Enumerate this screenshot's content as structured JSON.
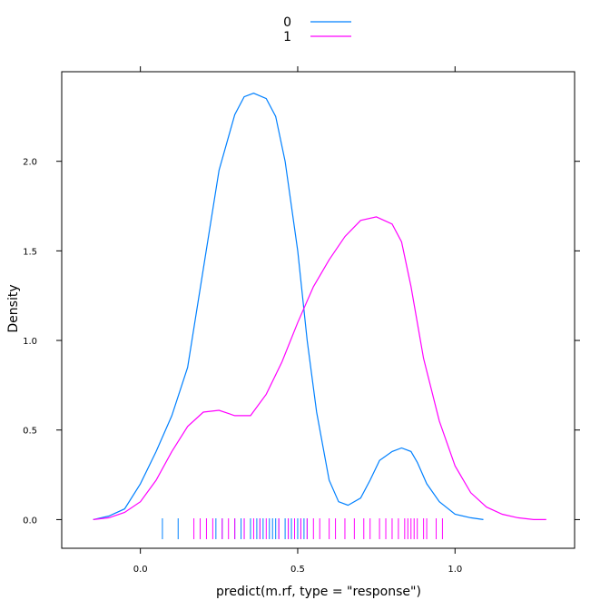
{
  "chart_data": {
    "type": "line",
    "title": "",
    "xlabel": "predict(m.rf, type = \"response\")",
    "ylabel": "Density",
    "xlim": [
      -0.25,
      1.38
    ],
    "ylim": [
      -0.16,
      2.5
    ],
    "xticks": [
      0.0,
      0.5,
      1.0
    ],
    "xtick_labels": [
      "0.0",
      "0.5",
      "1.0"
    ],
    "yticks": [
      0.0,
      0.5,
      1.0,
      1.5,
      2.0
    ],
    "ytick_labels": [
      "0.0",
      "0.5",
      "1.0",
      "1.5",
      "2.0"
    ],
    "grid": false,
    "legend_position": "top",
    "series": [
      {
        "name": "0",
        "color": "#0080ff",
        "x": [
          -0.15,
          -0.1,
          -0.05,
          0.0,
          0.05,
          0.1,
          0.15,
          0.2,
          0.25,
          0.3,
          0.33,
          0.36,
          0.4,
          0.43,
          0.46,
          0.5,
          0.53,
          0.56,
          0.6,
          0.63,
          0.66,
          0.7,
          0.73,
          0.76,
          0.8,
          0.83,
          0.86,
          0.88,
          0.91,
          0.95,
          1.0,
          1.05,
          1.09
        ],
        "y": [
          0.0,
          0.02,
          0.06,
          0.2,
          0.38,
          0.58,
          0.85,
          1.4,
          1.95,
          2.26,
          2.36,
          2.38,
          2.35,
          2.25,
          2.0,
          1.5,
          1.0,
          0.6,
          0.22,
          0.1,
          0.08,
          0.12,
          0.22,
          0.33,
          0.38,
          0.4,
          0.38,
          0.32,
          0.2,
          0.1,
          0.03,
          0.01,
          0.0
        ]
      },
      {
        "name": "1",
        "color": "#ff00ff",
        "x": [
          -0.15,
          -0.1,
          -0.05,
          0.0,
          0.05,
          0.1,
          0.15,
          0.2,
          0.25,
          0.3,
          0.35,
          0.4,
          0.45,
          0.5,
          0.55,
          0.6,
          0.65,
          0.7,
          0.75,
          0.8,
          0.83,
          0.86,
          0.9,
          0.95,
          1.0,
          1.05,
          1.1,
          1.15,
          1.2,
          1.25,
          1.29
        ],
        "y": [
          0.0,
          0.01,
          0.04,
          0.1,
          0.22,
          0.38,
          0.52,
          0.6,
          0.61,
          0.58,
          0.58,
          0.7,
          0.88,
          1.1,
          1.3,
          1.45,
          1.58,
          1.67,
          1.69,
          1.65,
          1.55,
          1.3,
          0.9,
          0.55,
          0.3,
          0.15,
          0.07,
          0.03,
          0.01,
          0.0,
          0.0
        ]
      }
    ],
    "rug": [
      {
        "name": "0",
        "color": "#0080ff",
        "x": [
          0.07,
          0.12,
          0.19,
          0.24,
          0.26,
          0.3,
          0.32,
          0.33,
          0.35,
          0.37,
          0.38,
          0.39,
          0.41,
          0.42,
          0.43,
          0.44,
          0.46,
          0.47,
          0.48,
          0.49,
          0.5,
          0.51,
          0.52,
          0.53
        ]
      },
      {
        "name": "1",
        "color": "#ff00ff",
        "x": [
          0.17,
          0.19,
          0.21,
          0.23,
          0.26,
          0.28,
          0.3,
          0.33,
          0.36,
          0.38,
          0.4,
          0.44,
          0.47,
          0.49,
          0.51,
          0.53,
          0.55,
          0.57,
          0.6,
          0.62,
          0.65,
          0.68,
          0.71,
          0.73,
          0.76,
          0.78,
          0.8,
          0.82,
          0.84,
          0.85,
          0.86,
          0.87,
          0.88,
          0.9,
          0.91,
          0.94,
          0.96
        ]
      }
    ]
  }
}
